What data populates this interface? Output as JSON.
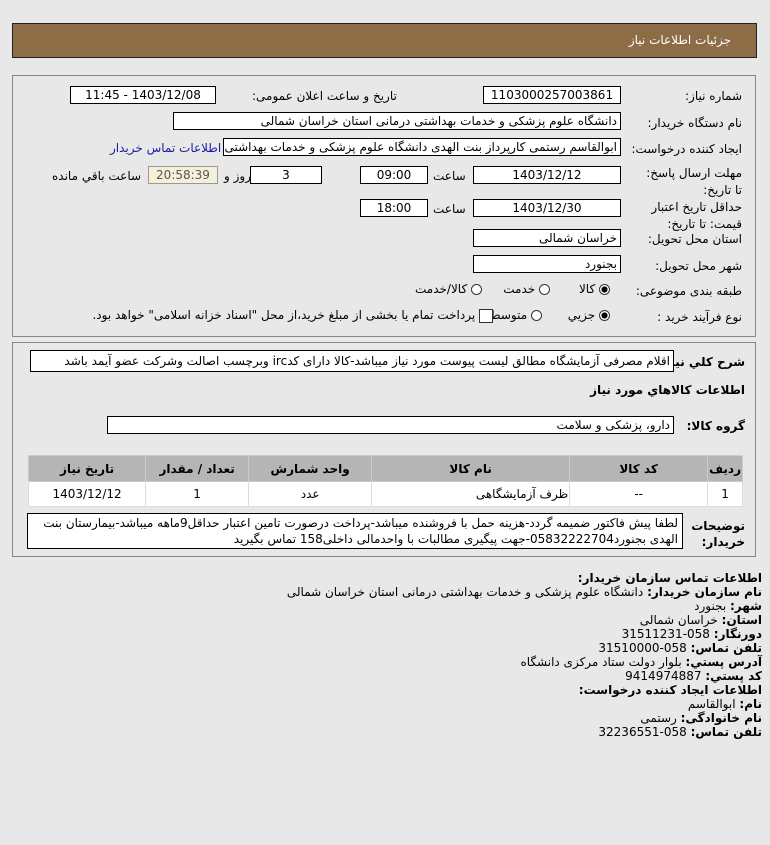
{
  "header": {
    "title": "جزئیات اطلاعات نیاز"
  },
  "form": {
    "need_number_label": "شماره نیاز:",
    "need_number": "1103000257003861",
    "announce_label": "تاریخ و ساعت اعلان عمومی:",
    "announce_value": "1403/12/08 - 11:45",
    "buyer_label": "نام دستگاه خریدار:",
    "buyer_value": "دانشگاه علوم پزشکی و خدمات بهداشتی درمانی استان خراسان شمالی",
    "creator_label": "ایجاد کننده درخواست:",
    "creator_value": "ابوالقاسم رستمی کارپرداز بنت الهدی دانشگاه علوم پزشکی و خدمات بهداشتی",
    "contact_link": "اطلاعات تماس خریدار",
    "deadline_label": "مهلت ارسال پاسخ: تا تاریخ:",
    "deadline_date": "1403/12/12",
    "time_label": "ساعت",
    "deadline_time": "09:00",
    "days": "3",
    "days_label": "روز و",
    "remaining": "20:58:39",
    "remaining_label": "ساعت باقي مانده",
    "validity_label": "حداقل تاریخ اعتبار قیمت: تا تاریخ:",
    "validity_date": "1403/12/30",
    "validity_time": "18:00",
    "province_label": "استان محل تحویل:",
    "province": "خراسان شمالی",
    "city_label": "شهر محل تحویل:",
    "city": "بجنورد",
    "category_label": "طبقه بندی موضوعی:",
    "category_options": [
      "کالا",
      "خدمت",
      "کالا/خدمت"
    ],
    "process_label": "نوع فرآیند خرید :",
    "process_options": [
      "جزیي",
      "متوسط"
    ],
    "payment_note": "پرداخت تمام یا بخشی از مبلغ خرید،از محل \"اسناد خزانه اسلامی\" خواهد بود."
  },
  "details": {
    "desc_label": "شرح کلي نیاز:",
    "desc": "اقلام مصرفی آزمایشگاه مطالق لیست پیوست مورد نیاز میباشد-کالا دارای کدirc وبرچسب اصالت وشرکت عضو آیمد باشد",
    "goods_title": "اطلاعات کالاهاي مورد نیاز",
    "group_label": "گروه کالا:",
    "group": "دارو، پزشکی و سلامت",
    "table": {
      "headers": [
        "ردیف",
        "کد کالا",
        "نام کالا",
        "واحد شمارش",
        "تعداد / مقدار",
        "تاریخ نیاز"
      ],
      "rows": [
        [
          "1",
          "--",
          "ظرف آزمایشگاهی",
          "عدد",
          "1",
          "1403/12/12"
        ]
      ]
    },
    "notes_label": "توضیحات خریدار:",
    "notes": "لطفا پیش فاکتور ضمیمه گردد-هزینه حمل با فروشنده میباشد-پرداخت درصورت تامین اعتبار حداقل9ماهه میباشد-بیمارستان بنت الهدی بجنورد05832222704-جهت پیگیری مطالبات با واحدمالی داخلی158 تماس بگیرید"
  },
  "contact": {
    "title": "اطلاعات تماس سازمان خریدار:",
    "org_label": "نام سازمان خریدار:",
    "org": "دانشگاه علوم پزشکی و خدمات بهداشتی درمانی استان خراسان شمالی",
    "city_label": "شهر:",
    "city": "بجنورد",
    "province_label": "استان:",
    "province": "خراسان شمالی",
    "fax_label": "دورنگار:",
    "fax": "058-31511231",
    "phone_label": "تلفن تماس:",
    "phone": "058-31510000",
    "address_label": "آدرس پستي:",
    "address": "بلوار دولت ستاد مرکزی دانشگاه",
    "postal_label": "کد پستي:",
    "postal": "9414974887",
    "creator_title": "اطلاعات ایجاد کننده درخواست:",
    "name_label": "نام:",
    "name": "ابوالقاسم",
    "family_label": "نام خانوادگی:",
    "family": "رستمی",
    "cphone_label": "تلفن تماس:",
    "cphone": "058-32236551"
  },
  "colors": {
    "header": "#8c6d45",
    "link": "#1a1aa6",
    "remaining_bg": "#f5f0d8"
  }
}
